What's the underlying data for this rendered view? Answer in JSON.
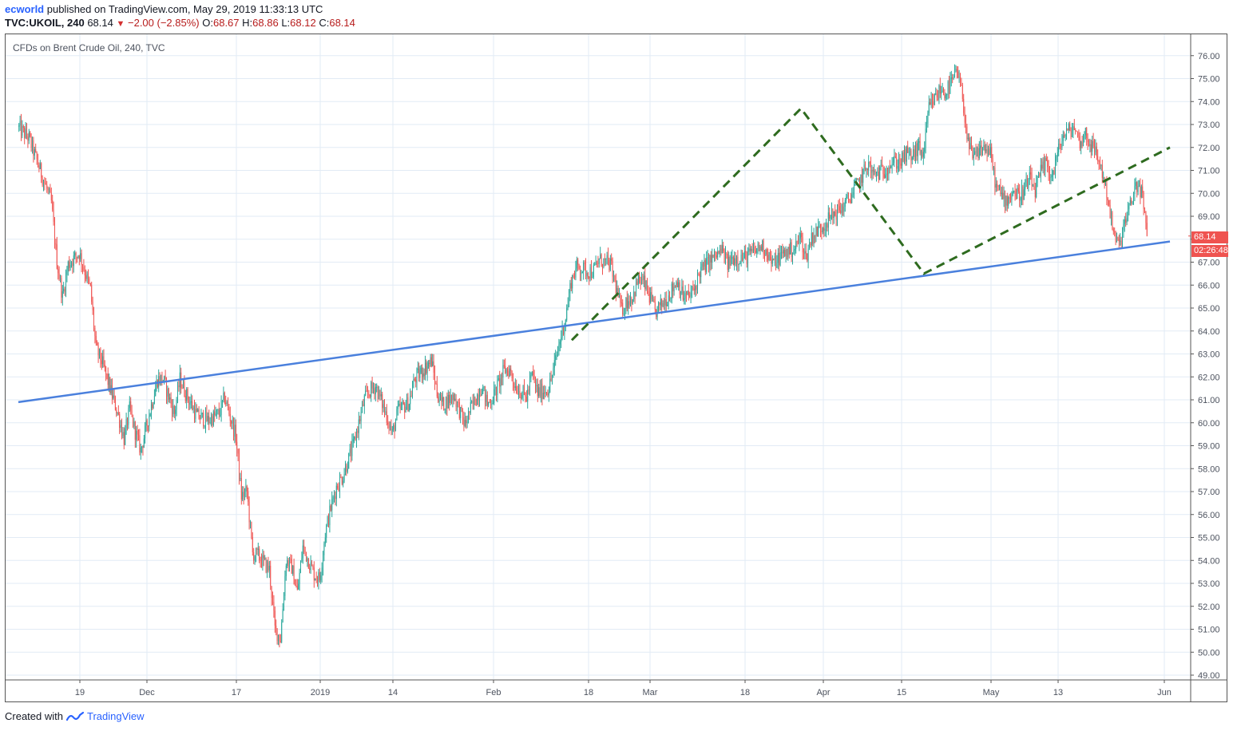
{
  "header": {
    "user": "ecworld",
    "published_text": " published on TradingView.com, May 29, 2019 11:33:13 UTC",
    "symbol": "TVC:UKOIL, 240",
    "last": "68.14",
    "change": "−2.00 (−2.85%)",
    "o_label": "O:",
    "o_value": "68.67",
    "h_label": "H:",
    "h_value": "68.86",
    "l_label": "L:",
    "l_value": "68.12",
    "c_label": "C:",
    "c_value": "68.14"
  },
  "chart_title": "CFDs on Brent Crude Oil, 240, TVC",
  "footer": {
    "created_with": "Created with",
    "brand": "TradingView"
  },
  "price_tags": {
    "last_price": "68.14",
    "countdown": "02:26:48"
  },
  "colors": {
    "up": "#26a69a",
    "down": "#ef5350",
    "trendline": "#4a80dd",
    "pattern_line": "#2e6b1f",
    "grid": "#e2ebf5",
    "price_tag": "#ef5350"
  },
  "chart_data": {
    "type": "candlestick",
    "symbol": "TVC:UKOIL",
    "interval": "240",
    "ylim": [
      48.8,
      76.8
    ],
    "y_ticks": [
      "76.00",
      "75.00",
      "74.00",
      "73.00",
      "72.00",
      "71.00",
      "70.00",
      "69.00",
      "68.00",
      "67.00",
      "66.00",
      "65.00",
      "64.00",
      "63.00",
      "62.00",
      "61.00",
      "60.00",
      "59.00",
      "58.00",
      "57.00",
      "56.00",
      "55.00",
      "54.00",
      "53.00",
      "52.00",
      "51.00",
      "50.00",
      "49.00"
    ],
    "x_ticks": [
      "19",
      "Dec",
      "17",
      "2019",
      "14",
      "Feb",
      "18",
      "Mar",
      "18",
      "Apr",
      "15",
      "May",
      "13",
      "Jun"
    ],
    "price_path": [
      [
        "Nov 08",
        72.9
      ],
      [
        "Nov 10",
        72.4
      ],
      [
        "Nov 12",
        71.0
      ],
      [
        "Nov 14",
        69.6
      ],
      [
        "Nov 15",
        67.0
      ],
      [
        "Nov 16",
        65.5
      ],
      [
        "Nov 17",
        66.9
      ],
      [
        "Nov 19",
        67.4
      ],
      [
        "Nov 21",
        65.8
      ],
      [
        "Nov 22",
        63.2
      ],
      [
        "Nov 23",
        62.7
      ],
      [
        "Nov 26",
        60.3
      ],
      [
        "Nov 27",
        59.3
      ],
      [
        "Nov 28",
        60.6
      ],
      [
        "Nov 29",
        59.6
      ],
      [
        "Nov 30",
        58.8
      ],
      [
        "Dec 03",
        61.9
      ],
      [
        "Dec 04",
        61.9
      ],
      [
        "Dec 06",
        60.4
      ],
      [
        "Dec 07",
        61.9
      ],
      [
        "Dec 08",
        61.3
      ],
      [
        "Dec 10",
        60.3
      ],
      [
        "Dec 12",
        60.1
      ],
      [
        "Dec 14",
        60.4
      ],
      [
        "Dec 15",
        61.1
      ],
      [
        "Dec 17",
        59.4
      ],
      [
        "Dec 18",
        56.8
      ],
      [
        "Dec 19",
        57.0
      ],
      [
        "Dec 20",
        54.3
      ],
      [
        "Dec 21",
        54.2
      ],
      [
        "Dec 23",
        53.6
      ],
      [
        "Dec 24",
        51.0
      ],
      [
        "Dec 25",
        50.6
      ],
      [
        "Dec 26",
        54.0
      ],
      [
        "Dec 27",
        53.7
      ],
      [
        "Dec 28",
        52.6
      ],
      [
        "Dec 29",
        54.6
      ],
      [
        "Dec 31",
        53.4
      ],
      [
        "Jan 01",
        53.2
      ],
      [
        "Jan 02",
        55.2
      ],
      [
        "Jan 03",
        56.3
      ],
      [
        "Jan 04",
        57.2
      ],
      [
        "Jan 05",
        57.6
      ],
      [
        "Jan 07",
        59.0
      ],
      [
        "Jan 09",
        61.0
      ],
      [
        "Jan 10",
        61.4
      ],
      [
        "Jan 11",
        61.6
      ],
      [
        "Jan 13",
        60.3
      ],
      [
        "Jan 14",
        59.5
      ],
      [
        "Jan 15",
        60.5
      ],
      [
        "Jan 17",
        60.9
      ],
      [
        "Jan 18",
        61.9
      ],
      [
        "Jan 21",
        62.7
      ],
      [
        "Jan 22",
        61.3
      ],
      [
        "Jan 23",
        60.8
      ],
      [
        "Jan 25",
        61.2
      ],
      [
        "Jan 27",
        59.9
      ],
      [
        "Jan 28",
        60.6
      ],
      [
        "Jan 30",
        61.6
      ],
      [
        "Jan 31",
        60.8
      ],
      [
        "Feb 01",
        61.1
      ],
      [
        "Feb 03",
        62.3
      ],
      [
        "Feb 04",
        62.3
      ],
      [
        "Feb 05",
        61.6
      ],
      [
        "Feb 07",
        61.1
      ],
      [
        "Feb 08",
        62.1
      ],
      [
        "Feb 09",
        61.3
      ],
      [
        "Feb 11",
        61.5
      ],
      [
        "Feb 12",
        62.5
      ],
      [
        "Feb 13",
        63.6
      ],
      [
        "Feb 14",
        64.6
      ],
      [
        "Feb 15",
        66.2
      ],
      [
        "Feb 16",
        66.8
      ],
      [
        "Feb 18",
        66.6
      ],
      [
        "Feb 19",
        66.6
      ],
      [
        "Feb 20",
        67.1
      ],
      [
        "Feb 22",
        66.9
      ],
      [
        "Feb 24",
        64.9
      ],
      [
        "Feb 25",
        65.3
      ],
      [
        "Feb 26",
        65.5
      ],
      [
        "Feb 27",
        66.2
      ],
      [
        "Feb 28",
        66.1
      ],
      [
        "Mar 01",
        65.5
      ],
      [
        "Mar 02",
        64.8
      ],
      [
        "Mar 04",
        65.4
      ],
      [
        "Mar 05",
        65.8
      ],
      [
        "Mar 06",
        66.2
      ],
      [
        "Mar 07",
        65.5
      ],
      [
        "Mar 08",
        65.5
      ],
      [
        "Mar 09",
        65.8
      ],
      [
        "Mar 10",
        66.6
      ],
      [
        "Mar 12",
        67.1
      ],
      [
        "Mar 14",
        67.5
      ],
      [
        "Mar 15",
        66.9
      ],
      [
        "Mar 16",
        67.2
      ],
      [
        "Mar 18",
        67.2
      ],
      [
        "Mar 20",
        67.5
      ],
      [
        "Mar 21",
        67.7
      ],
      [
        "Mar 22",
        67.5
      ],
      [
        "Mar 23",
        66.9
      ],
      [
        "Mar 25",
        67.4
      ],
      [
        "Mar 27",
        67.6
      ],
      [
        "Mar 28",
        68.1
      ],
      [
        "Mar 29",
        67.2
      ],
      [
        "Mar 30",
        68.1
      ],
      [
        "Apr 01",
        68.6
      ],
      [
        "Apr 03",
        69.1
      ],
      [
        "Apr 04",
        69.3
      ],
      [
        "Apr 05",
        69.5
      ],
      [
        "Apr 06",
        69.9
      ],
      [
        "Apr 08",
        70.7
      ],
      [
        "Apr 09",
        71.3
      ],
      [
        "Apr 10",
        70.8
      ],
      [
        "Apr 12",
        71.0
      ],
      [
        "Apr 13",
        71.3
      ],
      [
        "Apr 15",
        71.4
      ],
      [
        "Apr 16",
        71.7
      ],
      [
        "Apr 17",
        71.6
      ],
      [
        "Apr 18",
        72.0
      ],
      [
        "Apr 19",
        71.7
      ],
      [
        "Apr 20",
        73.7
      ],
      [
        "Apr 22",
        74.5
      ],
      [
        "Apr 23",
        74.4
      ],
      [
        "Apr 24",
        74.8
      ],
      [
        "Apr 25",
        75.3
      ],
      [
        "Apr 26",
        74.2
      ],
      [
        "Apr 27",
        72.1
      ],
      [
        "Apr 28",
        71.5
      ],
      [
        "Apr 29",
        71.9
      ],
      [
        "Apr 30",
        72.0
      ],
      [
        "May 01",
        71.7
      ],
      [
        "May 02",
        70.3
      ],
      [
        "May 03",
        69.9
      ],
      [
        "May 04",
        69.7
      ],
      [
        "May 05",
        70.1
      ],
      [
        "May 06",
        69.9
      ],
      [
        "May 07",
        70.1
      ],
      [
        "May 08",
        70.6
      ],
      [
        "May 09",
        70.1
      ],
      [
        "May 10",
        70.9
      ],
      [
        "May 11",
        71.3
      ],
      [
        "May 12",
        70.7
      ],
      [
        "May 13",
        71.7
      ],
      [
        "May 14",
        72.5
      ],
      [
        "May 15",
        72.7
      ],
      [
        "May 16",
        72.9
      ],
      [
        "May 17",
        72.2
      ],
      [
        "May 18",
        72.6
      ],
      [
        "May 19",
        72.1
      ],
      [
        "May 20",
        71.7
      ],
      [
        "May 21",
        70.9
      ],
      [
        "May 22",
        69.8
      ],
      [
        "May 23",
        68.2
      ],
      [
        "May 24",
        67.7
      ],
      [
        "May 25",
        68.7
      ],
      [
        "May 26",
        69.4
      ],
      [
        "May 27",
        70.4
      ],
      [
        "May 28",
        70.1
      ],
      [
        "May 29",
        68.14
      ]
    ],
    "drawings": [
      {
        "kind": "trendline",
        "style": "solid",
        "color": "#4a80dd",
        "points": [
          [
            "Nov 08",
            60.9
          ],
          [
            "Jun 02",
            67.9
          ]
        ]
      },
      {
        "kind": "pattern",
        "style": "dashed",
        "color": "#2e6b1f",
        "points": [
          [
            "Feb 15",
            63.6
          ],
          [
            "Mar 28",
            73.7
          ],
          [
            "Apr 19",
            66.5
          ],
          [
            "Jun 02",
            72.0
          ]
        ]
      }
    ],
    "last_price": 68.14,
    "grid": true
  }
}
